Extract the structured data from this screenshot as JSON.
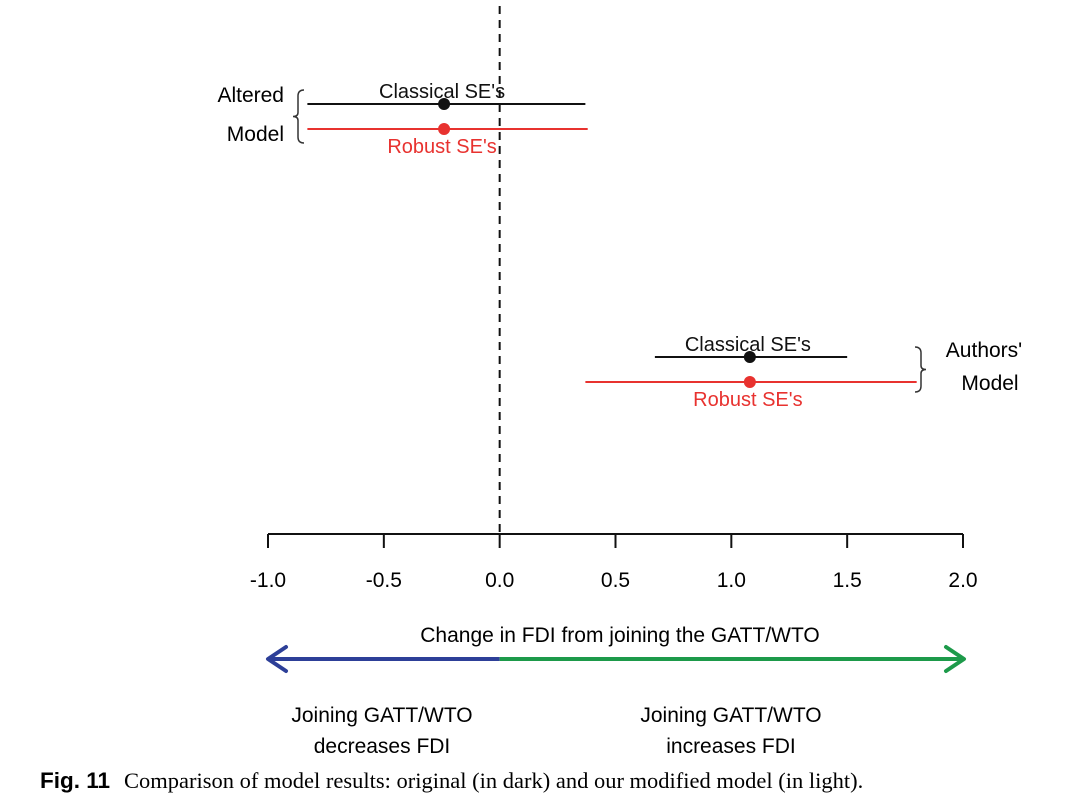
{
  "chart_data": {
    "type": "scatter",
    "subtype": "coefficient-plot-with-error-bars",
    "xlim": [
      -1.0,
      2.0
    ],
    "x_ticks": [
      -1.0,
      -0.5,
      0.0,
      0.5,
      1.0,
      1.5,
      2.0
    ],
    "x_tick_labels": [
      "-1.0",
      "-0.5",
      "0.0",
      "0.5",
      "1.0",
      "1.5",
      "2.0"
    ],
    "reference_line_x": 0.0,
    "grid": false,
    "models": [
      {
        "group_label_lines": [
          "Altered",
          "Model"
        ],
        "bracket_side": "left",
        "estimates": [
          {
            "label": "Classical SE's",
            "estimate": -0.24,
            "low": -0.83,
            "high": 0.37,
            "color": "#111111"
          },
          {
            "label": "Robust SE's",
            "estimate": -0.24,
            "low": -0.83,
            "high": 0.38,
            "color": "#e8322f"
          }
        ]
      },
      {
        "group_label_lines": [
          "Authors'",
          "Model"
        ],
        "bracket_side": "right",
        "estimates": [
          {
            "label": "Classical SE's",
            "estimate": 1.08,
            "low": 0.67,
            "high": 1.5,
            "color": "#111111"
          },
          {
            "label": "Robust SE's",
            "estimate": 1.08,
            "low": 0.37,
            "high": 1.8,
            "color": "#e8322f"
          }
        ]
      }
    ],
    "arrow_title": "Change in FDI from joining the GATT/WTO",
    "arrow_left_color": "#2d3f98",
    "arrow_right_color": "#1d9a4a",
    "arrow_left_label_lines": [
      "Joining GATT/WTO",
      "decreases FDI"
    ],
    "arrow_right_label_lines": [
      "Joining GATT/WTO",
      "increases FDI"
    ]
  },
  "caption": {
    "label": "Fig. 11",
    "text": "Comparison of model results: original (in dark) and our modified model (in light)."
  }
}
